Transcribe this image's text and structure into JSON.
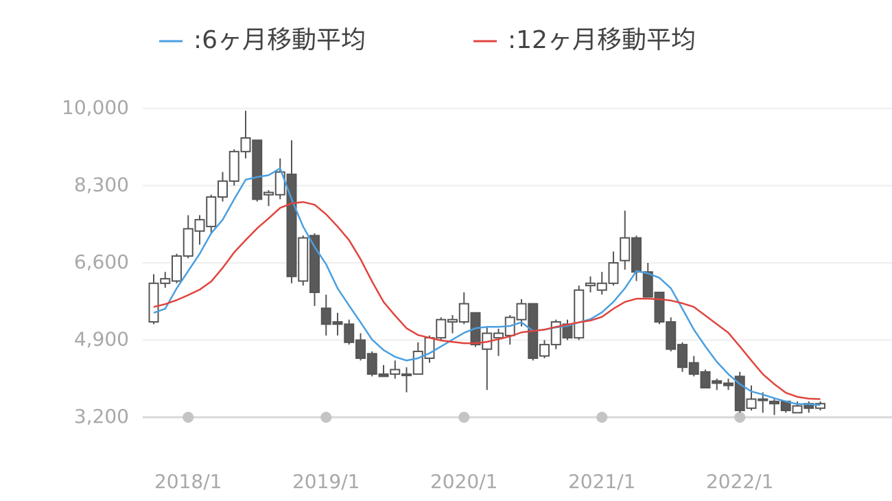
{
  "chart_data": {
    "type": "candlestick",
    "categories": [
      null,
      null,
      null,
      "2018/1",
      null,
      null,
      null,
      null,
      null,
      null,
      null,
      null,
      null,
      null,
      null,
      "2019/1",
      null,
      null,
      null,
      null,
      null,
      null,
      null,
      null,
      null,
      null,
      null,
      "2020/1",
      null,
      null,
      null,
      null,
      null,
      null,
      null,
      null,
      null,
      null,
      null,
      "2021/1",
      null,
      null,
      null,
      null,
      null,
      null,
      null,
      null,
      null,
      null,
      null,
      "2022/1",
      null,
      null,
      null,
      null,
      null,
      null,
      null
    ],
    "open": [
      5300,
      6150,
      6200,
      6750,
      7300,
      7400,
      8050,
      8400,
      9050,
      9300,
      8100,
      8100,
      8550,
      6200,
      7200,
      5600,
      5300,
      5250,
      4900,
      4600,
      4150,
      4150,
      4150,
      4150,
      4500,
      4950,
      5300,
      5300,
      5500,
      4700,
      4950,
      5000,
      5350,
      5700,
      4550,
      4800,
      5250,
      4950,
      6100,
      6000,
      6150,
      6650,
      7150,
      6400,
      5950,
      5300,
      4800,
      4400,
      4200,
      4000,
      3950,
      4100,
      3400,
      3600,
      3550,
      3550,
      3300,
      3500,
      3400
    ],
    "close": [
      6150,
      6250,
      6750,
      7350,
      7550,
      8050,
      8400,
      9050,
      9350,
      8000,
      8150,
      8600,
      6300,
      7150,
      5950,
      5250,
      5250,
      4850,
      4500,
      4150,
      4100,
      4250,
      4150,
      4650,
      4950,
      5350,
      5350,
      5700,
      4800,
      5050,
      5050,
      5400,
      5700,
      4500,
      4800,
      5300,
      4950,
      6000,
      6150,
      6150,
      6600,
      7150,
      6400,
      5850,
      5300,
      4700,
      4300,
      4150,
      3850,
      3950,
      3900,
      3350,
      3600,
      3600,
      3500,
      3350,
      3450,
      3400,
      3500
    ],
    "high": [
      6350,
      6400,
      6800,
      7650,
      7650,
      8100,
      8600,
      9100,
      9950,
      9300,
      8200,
      8900,
      9300,
      7200,
      7250,
      5900,
      5500,
      5350,
      5050,
      4650,
      4350,
      4450,
      4300,
      4850,
      5000,
      5400,
      5450,
      5950,
      5500,
      5200,
      5150,
      5450,
      5800,
      5700,
      4900,
      5350,
      5350,
      6100,
      6300,
      6400,
      6850,
      7750,
      7200,
      6600,
      5950,
      5400,
      4850,
      4550,
      4250,
      4050,
      4050,
      4200,
      3900,
      3750,
      3600,
      3550,
      3550,
      3550,
      3550
    ],
    "low": [
      5250,
      6050,
      6150,
      6700,
      7000,
      7250,
      7950,
      8300,
      8900,
      7950,
      7850,
      8000,
      6150,
      6100,
      5650,
      5000,
      5000,
      4800,
      4450,
      4100,
      4100,
      4050,
      3750,
      4150,
      4400,
      4900,
      5050,
      5250,
      4750,
      3800,
      4550,
      4800,
      5200,
      4450,
      4500,
      4700,
      4900,
      4900,
      5950,
      5900,
      6100,
      6450,
      6200,
      5850,
      5250,
      4650,
      4200,
      4100,
      3850,
      3800,
      3800,
      3300,
      3350,
      3300,
      3250,
      3300,
      3300,
      3300,
      3350
    ],
    "up_color": "#ffffff",
    "down_color": "#5a5a5a",
    "series": [
      {
        "name": ":6ヶ月移動平均",
        "color": "#4a9fe0",
        "values": [
          5500,
          5590,
          6040,
          6420,
          6800,
          7250,
          7550,
          8000,
          8430,
          8490,
          8530,
          8680,
          8000,
          7400,
          6950,
          6570,
          6040,
          5660,
          5290,
          4910,
          4680,
          4530,
          4450,
          4500,
          4610,
          4760,
          4910,
          5060,
          5160,
          5190,
          5190,
          5210,
          5290,
          5100,
          5130,
          5180,
          5210,
          5290,
          5360,
          5510,
          5740,
          6040,
          6420,
          6370,
          6270,
          6040,
          5590,
          5130,
          4760,
          4420,
          4150,
          3930,
          3770,
          3700,
          3620,
          3550,
          3490,
          3490,
          3470
        ]
      },
      {
        "name": ":12ヶ月移動平均",
        "color": "#e0443e",
        "values": [
          5630,
          5690,
          5780,
          5890,
          6010,
          6190,
          6490,
          6830,
          7100,
          7360,
          7580,
          7810,
          7910,
          7940,
          7880,
          7670,
          7400,
          7100,
          6680,
          6190,
          5740,
          5440,
          5160,
          5010,
          4950,
          4890,
          4860,
          4830,
          4830,
          4860,
          4920,
          4980,
          5070,
          5100,
          5130,
          5190,
          5240,
          5290,
          5330,
          5410,
          5590,
          5740,
          5810,
          5810,
          5800,
          5770,
          5710,
          5630,
          5440,
          5250,
          5060,
          4760,
          4450,
          4150,
          3930,
          3740,
          3650,
          3610,
          3600
        ]
      }
    ],
    "ylim": [
      3200,
      10000
    ],
    "yticks": [
      {
        "value": 3200,
        "label": "3,200"
      },
      {
        "value": 4900,
        "label": "4,900"
      },
      {
        "value": 6600,
        "label": "6,600"
      },
      {
        "value": 8300,
        "label": "8,300"
      },
      {
        "value": 10000,
        "label": "10,000"
      }
    ],
    "grid": true
  }
}
